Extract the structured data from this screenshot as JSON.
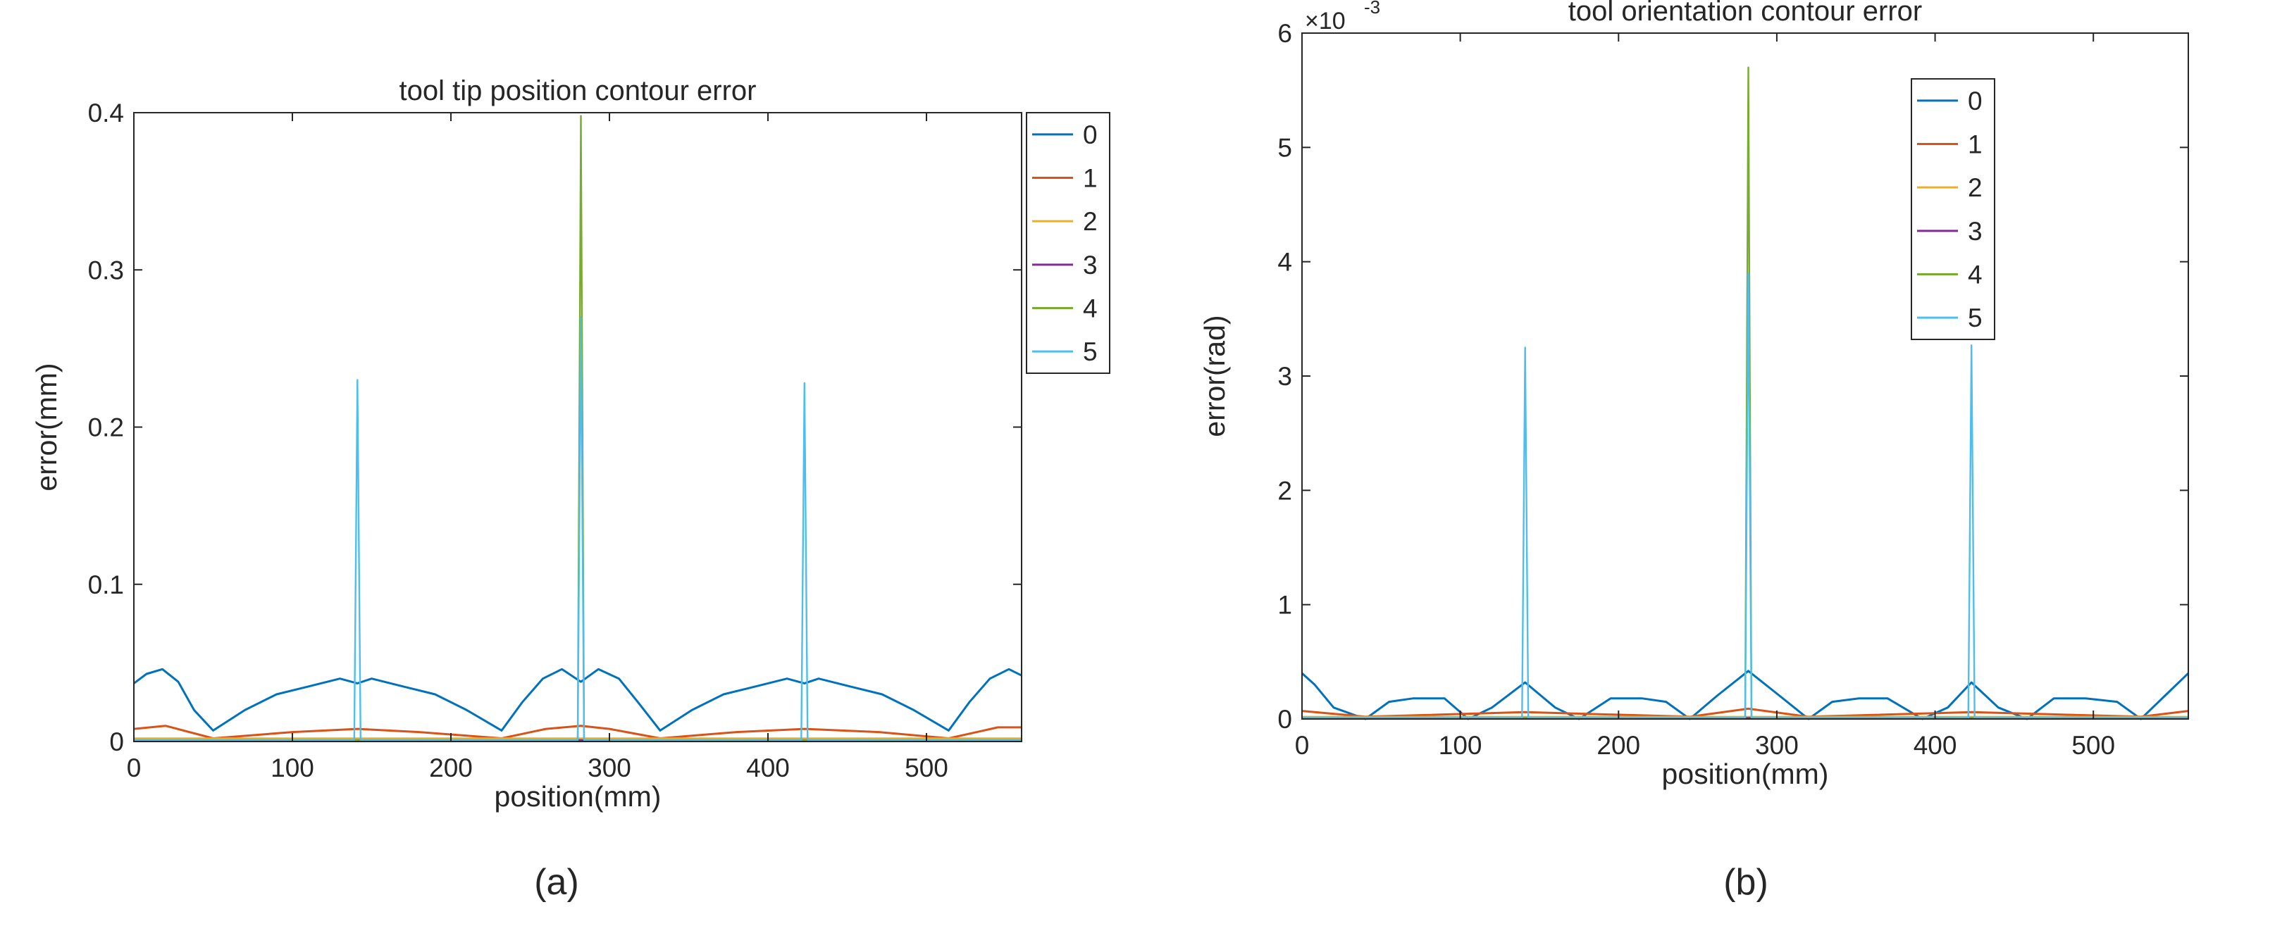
{
  "figure": {
    "panel_labels": [
      "(a)",
      "(b)"
    ]
  },
  "chart_data": [
    {
      "type": "line",
      "title": "tool tip position contour error",
      "xlabel": "position(mm)",
      "ylabel": "error(mm)",
      "xlim": [
        0,
        560
      ],
      "ylim": [
        0,
        0.4
      ],
      "xticks": [
        0,
        100,
        200,
        300,
        400,
        500
      ],
      "xtick_labels": [
        "0",
        "100",
        "200",
        "300",
        "400",
        "500"
      ],
      "yticks": [
        0,
        0.1,
        0.2,
        0.3,
        0.4
      ],
      "ytick_labels": [
        "0",
        "0.1",
        "0.2",
        "0.3",
        "0.4"
      ],
      "legend_position": "outside-top-right",
      "series": [
        {
          "name": "0",
          "color": "#0072BD",
          "x": [
            0,
            8,
            18,
            28,
            38,
            50,
            70,
            90,
            110,
            130,
            141,
            150,
            170,
            190,
            210,
            232,
            245,
            258,
            270,
            282,
            293,
            306,
            318,
            332,
            352,
            372,
            392,
            412,
            423,
            432,
            452,
            472,
            492,
            514,
            527,
            540,
            552,
            560
          ],
          "y": [
            0.037,
            0.043,
            0.046,
            0.038,
            0.02,
            0.007,
            0.02,
            0.03,
            0.035,
            0.04,
            0.037,
            0.04,
            0.035,
            0.03,
            0.02,
            0.007,
            0.025,
            0.04,
            0.046,
            0.038,
            0.046,
            0.04,
            0.025,
            0.007,
            0.02,
            0.03,
            0.035,
            0.04,
            0.037,
            0.04,
            0.035,
            0.03,
            0.02,
            0.007,
            0.025,
            0.04,
            0.046,
            0.042
          ]
        },
        {
          "name": "1",
          "color": "#D95319",
          "x": [
            0,
            20,
            50,
            100,
            141,
            180,
            232,
            260,
            282,
            300,
            332,
            380,
            423,
            470,
            514,
            545,
            560
          ],
          "y": [
            0.008,
            0.01,
            0.002,
            0.006,
            0.008,
            0.006,
            0.002,
            0.008,
            0.01,
            0.008,
            0.002,
            0.006,
            0.008,
            0.006,
            0.002,
            0.009,
            0.009
          ]
        },
        {
          "name": "2",
          "color": "#EDB120",
          "x": [
            0,
            141,
            282,
            423,
            560
          ],
          "y": [
            0.002,
            0.002,
            0.002,
            0.002,
            0.002
          ]
        },
        {
          "name": "3",
          "color": "#7E2F8E",
          "x": [
            0,
            141,
            282,
            423,
            560
          ],
          "y": [
            0.001,
            0.001,
            0.001,
            0.001,
            0.001
          ]
        },
        {
          "name": "4",
          "color": "#77AC30",
          "x": [
            0,
            280,
            282,
            284,
            560
          ],
          "y": [
            0.001,
            0.001,
            0.398,
            0.001,
            0.001
          ]
        },
        {
          "name": "5",
          "color": "#4DBEEE",
          "x": [
            0,
            139,
            141,
            143,
            280,
            282,
            284,
            421,
            423,
            425,
            560
          ],
          "y": [
            0.001,
            0.001,
            0.23,
            0.001,
            0.001,
            0.27,
            0.001,
            0.001,
            0.228,
            0.001,
            0.001
          ]
        }
      ]
    },
    {
      "type": "line",
      "title": "tool orientation contour error",
      "xlabel": "position(mm)",
      "ylabel": "error(rad)",
      "y_exponent_label": "×10",
      "y_exponent_power": "-3",
      "xlim": [
        0,
        560
      ],
      "ylim": [
        0,
        6
      ],
      "xticks": [
        0,
        100,
        200,
        300,
        400,
        500
      ],
      "xtick_labels": [
        "0",
        "100",
        "200",
        "300",
        "400",
        "500"
      ],
      "yticks": [
        0,
        1,
        2,
        3,
        4,
        5,
        6
      ],
      "ytick_labels": [
        "0",
        "1",
        "2",
        "3",
        "4",
        "5",
        "6"
      ],
      "legend_position": "outside-top-right",
      "series": [
        {
          "name": "0",
          "color": "#0072BD",
          "x": [
            0,
            8,
            20,
            40,
            55,
            70,
            90,
            105,
            120,
            141,
            160,
            175,
            195,
            215,
            230,
            245,
            262,
            282,
            302,
            320,
            335,
            352,
            370,
            392,
            408,
            423,
            440,
            458,
            475,
            495,
            515,
            530,
            545,
            560
          ],
          "y": [
            0.4,
            0.3,
            0.1,
            0.0,
            0.15,
            0.18,
            0.18,
            0.0,
            0.1,
            0.32,
            0.1,
            0.0,
            0.18,
            0.18,
            0.15,
            0.0,
            0.2,
            0.42,
            0.2,
            0.0,
            0.15,
            0.18,
            0.18,
            0.0,
            0.1,
            0.32,
            0.1,
            0.0,
            0.18,
            0.18,
            0.15,
            0.0,
            0.2,
            0.4
          ]
        },
        {
          "name": "1",
          "color": "#D95319",
          "x": [
            0,
            40,
            141,
            245,
            282,
            320,
            423,
            530,
            560
          ],
          "y": [
            0.07,
            0.02,
            0.06,
            0.02,
            0.09,
            0.02,
            0.06,
            0.02,
            0.07
          ]
        },
        {
          "name": "2",
          "color": "#EDB120",
          "x": [
            0,
            141,
            282,
            423,
            560
          ],
          "y": [
            0.02,
            0.02,
            0.02,
            0.02,
            0.02
          ]
        },
        {
          "name": "3",
          "color": "#7E2F8E",
          "x": [
            0,
            141,
            282,
            423,
            560
          ],
          "y": [
            0.01,
            0.01,
            0.01,
            0.01,
            0.01
          ]
        },
        {
          "name": "4",
          "color": "#77AC30",
          "x": [
            0,
            280,
            282,
            284,
            560
          ],
          "y": [
            0.01,
            0.01,
            5.7,
            0.01,
            0.01
          ]
        },
        {
          "name": "5",
          "color": "#4DBEEE",
          "x": [
            0,
            139,
            141,
            143,
            280,
            282,
            284,
            421,
            423,
            425,
            560
          ],
          "y": [
            0.01,
            0.01,
            3.25,
            0.01,
            0.01,
            3.9,
            0.01,
            0.01,
            3.27,
            0.01,
            0.01
          ]
        }
      ]
    }
  ]
}
